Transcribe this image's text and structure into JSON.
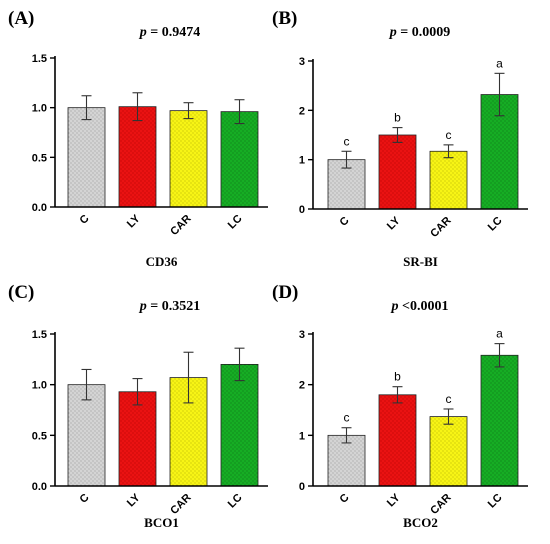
{
  "colors": {
    "C": "#d4d4d4",
    "LY": "#ea1212",
    "CAR": "#f7f415",
    "LC": "#16ad24",
    "pattern_C": "#8a8a8a",
    "pattern_LY": "#a80000",
    "pattern_CAR": "#a8a400",
    "pattern_LC": "#0a6414"
  },
  "chart_data": [
    {
      "type": "bar",
      "panel": "(A)",
      "title_p": "p",
      "title_rest": " = 0.9474",
      "xlabel": "CD36",
      "categories": [
        "C",
        "LY",
        "CAR",
        "LC"
      ],
      "values": [
        1.0,
        1.01,
        0.97,
        0.96
      ],
      "errors": [
        0.12,
        0.14,
        0.08,
        0.12
      ],
      "sig": [
        "",
        "",
        "",
        ""
      ],
      "ylim": [
        0,
        1.5
      ],
      "ticks": [
        0.0,
        0.5,
        1.0,
        1.5
      ],
      "tick_labels": [
        "0.0",
        "0.5",
        "1.0",
        "1.5"
      ]
    },
    {
      "type": "bar",
      "panel": "(B)",
      "title_p": "p",
      "title_rest": " = 0.0009",
      "xlabel": "SR-BI",
      "categories": [
        "C",
        "LY",
        "CAR",
        "LC"
      ],
      "values": [
        1.0,
        1.5,
        1.17,
        2.32
      ],
      "errors": [
        0.17,
        0.15,
        0.13,
        0.43
      ],
      "sig": [
        "c",
        "b",
        "c",
        "a"
      ],
      "ylim": [
        0,
        3
      ],
      "ticks": [
        0,
        1,
        2,
        3
      ],
      "tick_labels": [
        "0",
        "1",
        "2",
        "3"
      ]
    },
    {
      "type": "bar",
      "panel": "(C)",
      "title_p": "p",
      "title_rest": " = 0.3521",
      "xlabel": "BCO1",
      "categories": [
        "C",
        "LY",
        "CAR",
        "LC"
      ],
      "values": [
        1.0,
        0.93,
        1.07,
        1.2
      ],
      "errors": [
        0.15,
        0.13,
        0.25,
        0.16
      ],
      "sig": [
        "",
        "",
        "",
        ""
      ],
      "ylim": [
        0,
        1.5
      ],
      "ticks": [
        0.0,
        0.5,
        1.0,
        1.5
      ],
      "tick_labels": [
        "0.0",
        "0.5",
        "1.0",
        "1.5"
      ]
    },
    {
      "type": "bar",
      "panel": "(D)",
      "title_p": "p",
      "title_rest": " <0.0001",
      "xlabel": "BCO2",
      "categories": [
        "C",
        "LY",
        "CAR",
        "LC"
      ],
      "values": [
        1.0,
        1.8,
        1.37,
        2.58
      ],
      "errors": [
        0.15,
        0.16,
        0.15,
        0.23
      ],
      "sig": [
        "c",
        "b",
        "c",
        "a"
      ],
      "ylim": [
        0,
        3
      ],
      "ticks": [
        0,
        1,
        2,
        3
      ],
      "tick_labels": [
        "0",
        "1",
        "2",
        "3"
      ]
    }
  ]
}
